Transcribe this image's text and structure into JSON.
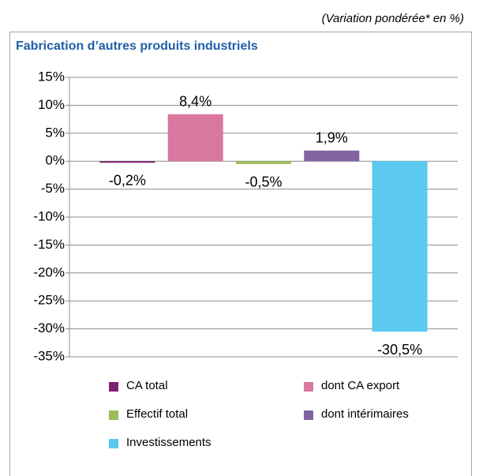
{
  "chart_data": {
    "type": "bar",
    "subtitle": "(Variation pondérée* en %)",
    "title": "Fabrication d’autres produits industriels",
    "categories": [
      null
    ],
    "series": [
      {
        "name": "CA total",
        "color": "#7b2170",
        "values": [
          -0.2
        ],
        "value_labels": [
          "-0,2%"
        ]
      },
      {
        "name": "dont CA export",
        "color": "#d9779f",
        "values": [
          8.4
        ],
        "value_labels": [
          "8,4%"
        ]
      },
      {
        "name": "Effectif total",
        "color": "#9bbb59",
        "values": [
          -0.5
        ],
        "value_labels": [
          "-0,5%"
        ]
      },
      {
        "name": "dont intérimaires",
        "color": "#8064a2",
        "values": [
          1.9
        ],
        "value_labels": [
          "1,9%"
        ]
      },
      {
        "name": "Investissements",
        "color": "#5bc8f0",
        "values": [
          -30.5
        ],
        "value_labels": [
          "-30,5%"
        ]
      }
    ],
    "ylim": [
      -35,
      15
    ],
    "yticks": [
      {
        "value": -35,
        "label": "-35%"
      },
      {
        "value": -30,
        "label": "-30%"
      },
      {
        "value": -25,
        "label": "-25%"
      },
      {
        "value": -20,
        "label": "-20%"
      },
      {
        "value": -15,
        "label": "-15%"
      },
      {
        "value": -10,
        "label": "-10%"
      },
      {
        "value": -5,
        "label": "-5%"
      },
      {
        "value": 0,
        "label": "0%"
      },
      {
        "value": 5,
        "label": "5%"
      },
      {
        "value": 10,
        "label": "10%"
      },
      {
        "value": 15,
        "label": "15%"
      }
    ],
    "grid": true
  }
}
